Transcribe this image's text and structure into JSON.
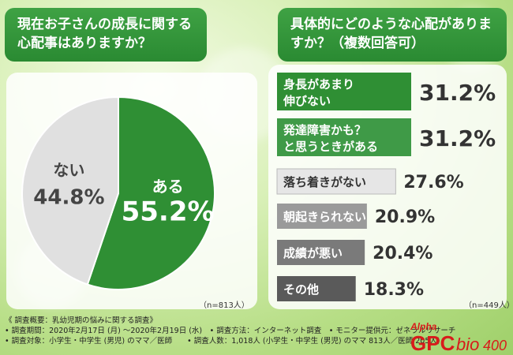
{
  "chart_data": [
    {
      "type": "pie",
      "title": "現在お子さんの成長に関する心配事はありますか？",
      "categories": [
        "ある",
        "ない"
      ],
      "values": [
        55.2,
        44.8
      ],
      "value_labels": [
        "55.2%",
        "44.8%"
      ],
      "note": "（n=813人）",
      "colors": [
        "#2f8f34",
        "#e0e0e0"
      ]
    },
    {
      "type": "bar",
      "orientation": "horizontal",
      "title": "具体的にどのような心配がありますか？（複数回答可）",
      "categories": [
        [
          "身長があまり",
          "伸びない"
        ],
        [
          "発達障害かも？",
          "と思うときがある"
        ],
        [
          "落ち着きがない"
        ],
        [
          "朝起きられない"
        ],
        [
          "成績が悪い"
        ],
        [
          "その他"
        ]
      ],
      "values": [
        31.2,
        31.2,
        27.6,
        20.9,
        20.4,
        18.3
      ],
      "value_labels": [
        "31.2%",
        "31.2%",
        "27.6%",
        "20.9%",
        "20.4%",
        "18.3%"
      ],
      "note": "（n=449人）",
      "colors": [
        "#2f8f34",
        "#3f9a47",
        "#e6e6e6",
        "#9a9a9a",
        "#7a7a7a",
        "#5a5a5a"
      ]
    }
  ],
  "footer": [
    "《 調査概要：乳幼児期の悩みに関する調査》",
    "• 調査期間：2020年2月17日 (月) ～2020年2月19日 (水)　• 調査方法：インターネット調査　• モニター提供元：ゼネラルリサーチ",
    "• 調査対象：小学生・中学生 (男児) のママ／医師　　• 調査人数：1,018人 (小学生・中学生 (男児) のママ 813人／医師 205人)"
  ],
  "logo": {
    "alpha": "Alpha",
    "gpc": "GPC",
    "bio": "bio",
    "num": "400"
  }
}
